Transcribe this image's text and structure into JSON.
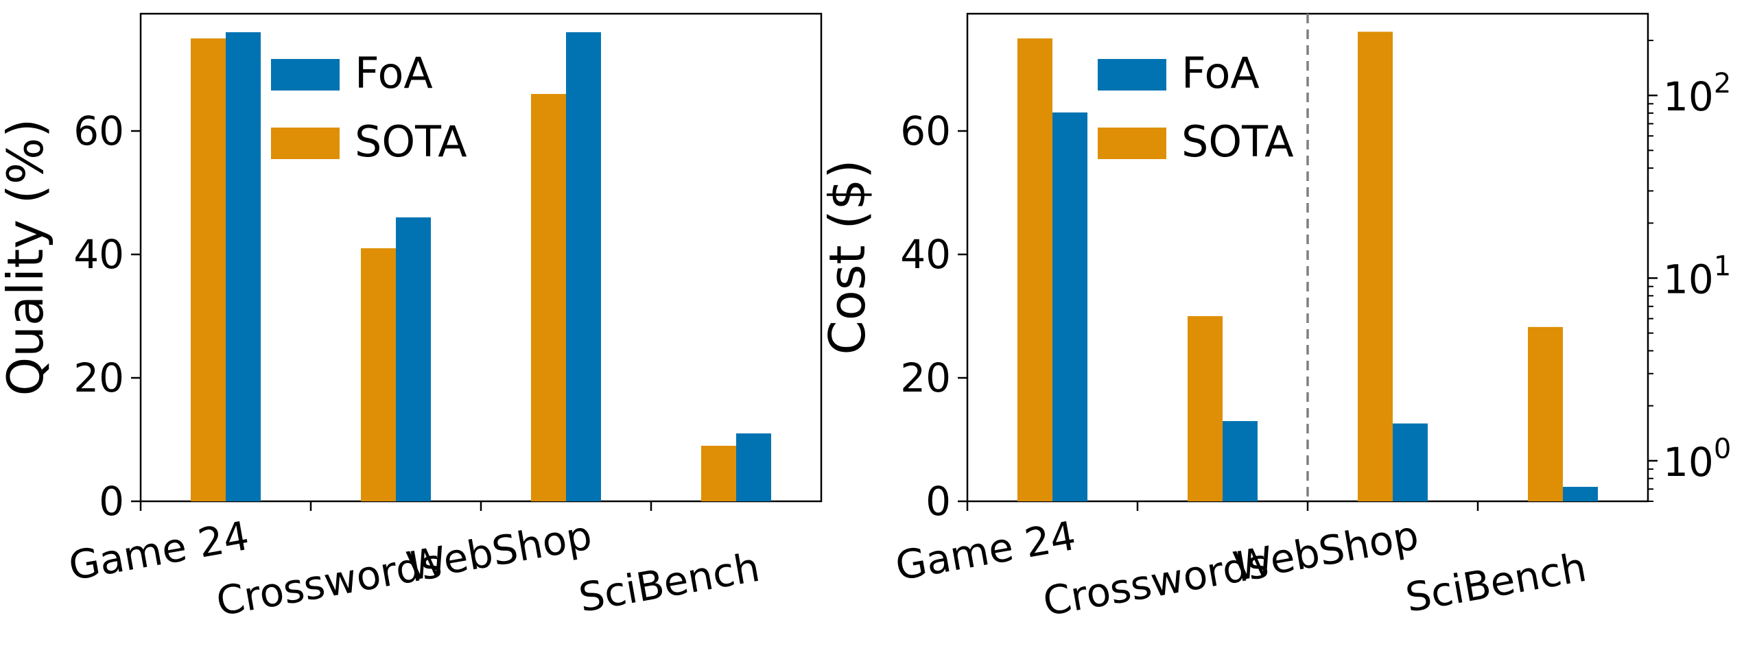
{
  "chart_data": [
    {
      "type": "bar",
      "categories": [
        "Game 24",
        "Crosswords",
        "WebShop",
        "SciBench"
      ],
      "series": [
        {
          "name": "SOTA",
          "values": [
            75,
            41,
            66,
            9
          ],
          "color": "#de8f05"
        },
        {
          "name": "FoA",
          "values": [
            76,
            46,
            76,
            11
          ],
          "color": "#0173b2"
        }
      ],
      "xlabel": "",
      "ylabel": "Quality (%)",
      "ylim": [
        0,
        79
      ],
      "yticks": [
        "0",
        "20",
        "40",
        "60"
      ],
      "legend": {
        "placement": "top-center",
        "entries": [
          "FoA",
          "SOTA"
        ]
      },
      "grid": false
    },
    {
      "type": "bar",
      "categories": [
        "Game 24",
        "Crosswords",
        "WebShop",
        "SciBench"
      ],
      "series": [
        {
          "name": "SOTA",
          "values": [
            75,
            30,
            223,
            5.4
          ],
          "color": "#de8f05"
        },
        {
          "name": "FoA",
          "values": [
            63,
            13,
            1.6,
            0.72
          ],
          "color": "#0173b2"
        }
      ],
      "xlabel": "",
      "ylabel": "Cost ($)",
      "ylim": [
        0,
        79
      ],
      "yticks": [
        "0",
        "20",
        "40",
        "60"
      ],
      "right_axis": {
        "scale": "log",
        "ylim": [
          0.6,
          280
        ],
        "ticks": [
          1,
          10,
          100
        ],
        "tick_labels": [
          "10",
          "10",
          "10"
        ],
        "tick_exponents": [
          "0",
          "1",
          "2"
        ]
      },
      "right_axis_categories": [
        "WebShop",
        "SciBench"
      ],
      "divider": "dashed",
      "legend": {
        "placement": "top-center",
        "entries": [
          "FoA",
          "SOTA"
        ]
      },
      "grid": false
    }
  ]
}
